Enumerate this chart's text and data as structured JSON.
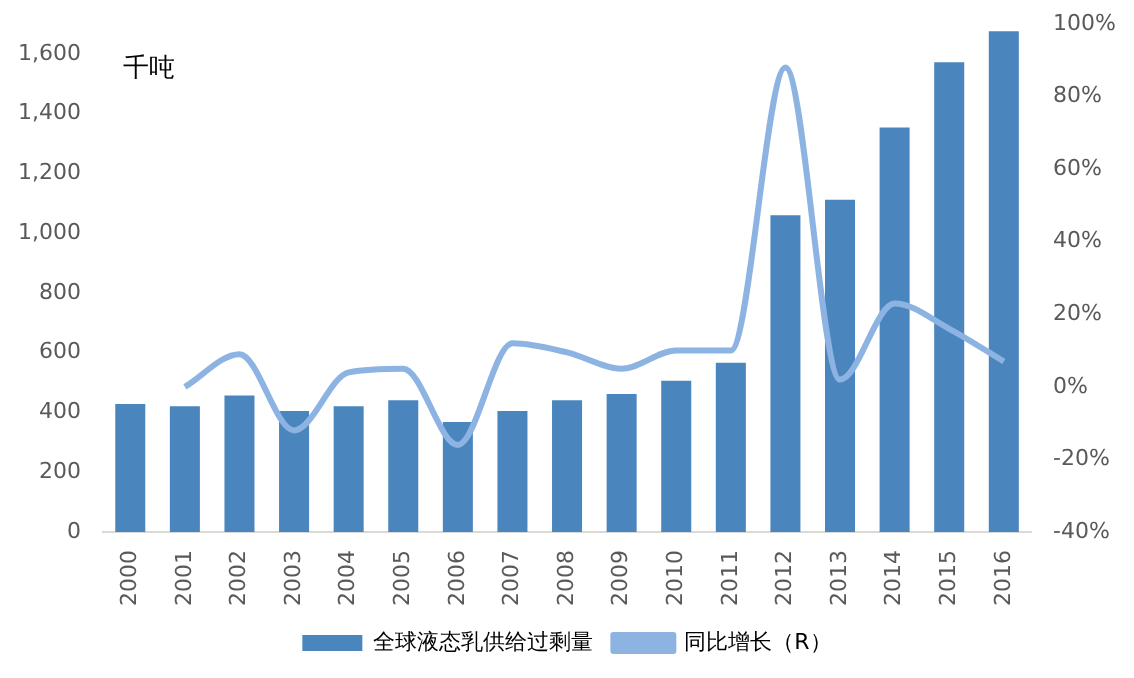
{
  "chart_data": {
    "type": "bar",
    "categories": [
      "2000",
      "2001",
      "2002",
      "2003",
      "2004",
      "2005",
      "2006",
      "2007",
      "2008",
      "2009",
      "2010",
      "2011",
      "2012",
      "2013",
      "2014",
      "2015",
      "2016"
    ],
    "series": [
      {
        "name": "全球液态乳供给过剩量",
        "color": "#4a86bd",
        "values": [
          428,
          421,
          457,
          405,
          421,
          441,
          368,
          405,
          441,
          462,
          506,
          566,
          1060,
          1112,
          1354,
          1572,
          1676
        ]
      },
      {
        "name": "同比增长（R）",
        "type": "line",
        "axis": "y2",
        "color": "#8db3e2",
        "values": [
          null,
          0,
          9,
          -12,
          4,
          5,
          -16,
          12,
          9.5,
          5,
          10,
          10,
          88,
          2,
          23,
          16,
          7
        ]
      }
    ],
    "ylim": [
      0,
      1700
    ],
    "yticks": [
      0,
      {
        "value": 200,
        "label": "200"
      },
      {
        "value": 400,
        "label": "400"
      },
      {
        "value": 600,
        "label": "600"
      },
      {
        "value": 800,
        "label": "800"
      },
      {
        "value": 1000,
        "label": "1,000"
      },
      {
        "value": 1200,
        "label": "1,200"
      },
      {
        "value": 1400,
        "label": "1,400"
      },
      {
        "value": 1600,
        "label": "1,600"
      }
    ],
    "y2lim": [
      -40,
      100
    ],
    "y2ticks": [
      {
        "value": -40,
        "label": "-40%"
      },
      {
        "value": -20,
        "label": "-20%"
      },
      {
        "value": 0,
        "label": "0%"
      },
      {
        "value": 20,
        "label": "20%"
      },
      {
        "value": 40,
        "label": "40%"
      },
      {
        "value": 60,
        "label": "60%"
      },
      {
        "value": 80,
        "label": "80%"
      },
      {
        "value": 100,
        "label": "100%"
      }
    ],
    "annotations": [
      "千吨"
    ],
    "legend": "bottom",
    "grid": false,
    "marker": "none",
    "line_style": "solid"
  }
}
